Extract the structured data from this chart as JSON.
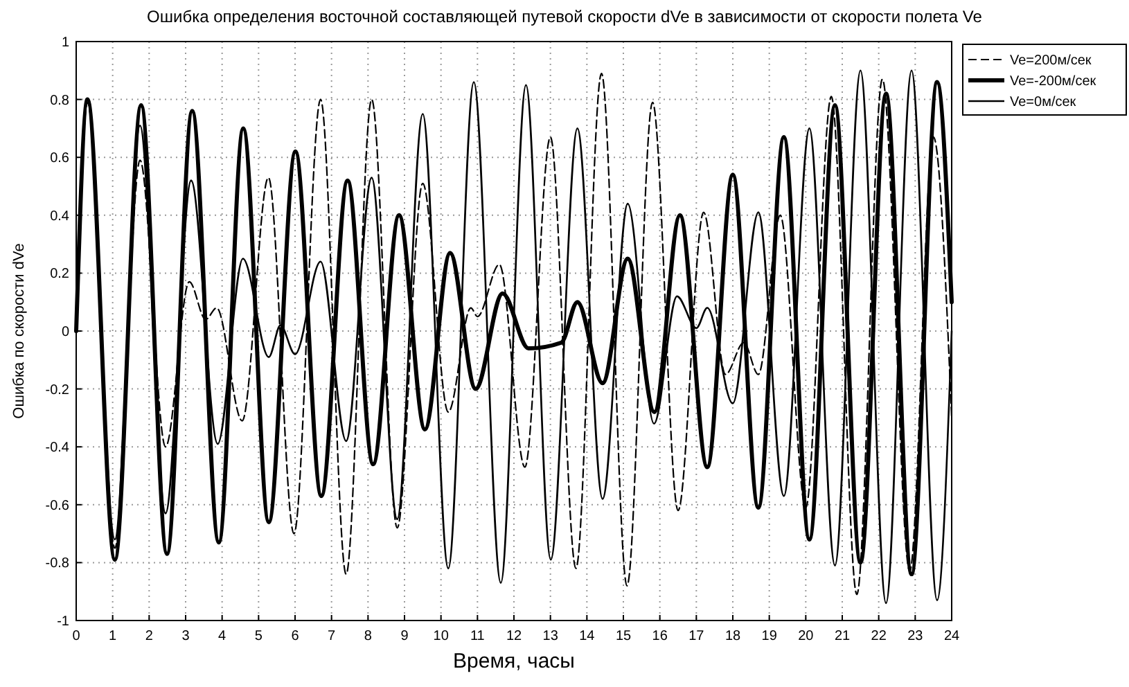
{
  "chart_data": {
    "type": "line",
    "title": "Ошибка определения восточной составляющей путевой скорости dVe в зависимости от скорости полета Ve",
    "xlabel": "Время, часы",
    "ylabel": "Ошибка по скорости dVe",
    "xlim": [
      0,
      24
    ],
    "xticks": [
      0,
      1,
      2,
      3,
      4,
      5,
      6,
      7,
      8,
      9,
      10,
      11,
      12,
      13,
      14,
      15,
      16,
      17,
      18,
      19,
      20,
      21,
      22,
      23,
      24
    ],
    "ylim": [
      -1,
      1
    ],
    "yticks": [
      -1,
      -0.8,
      -0.6,
      -0.4,
      -0.2,
      0,
      0.2,
      0.4,
      0.6,
      0.8,
      1
    ],
    "grid": true,
    "legend": "right",
    "marker": "none",
    "series": [
      {
        "name": "Ve=200м/сек",
        "color": "#000000",
        "line_style": "dashed",
        "x": [
          0,
          0.31,
          1.06,
          1.75,
          2.45,
          3.1,
          3.55,
          3.85,
          4.55,
          5.27,
          5.97,
          6.7,
          7.4,
          8.1,
          8.8,
          9.5,
          10.2,
          10.82,
          11.0,
          11.6,
          12.3,
          13.0,
          13.7,
          14.4,
          15.1,
          15.8,
          16.5,
          17.2,
          17.8,
          18.3,
          18.7,
          19.3,
          20.0,
          20.7,
          21.4,
          22.1,
          22.85,
          23.5,
          24
        ],
        "values": [
          0,
          0.79,
          -0.75,
          0.59,
          -0.4,
          0.17,
          0.04,
          0.08,
          -0.31,
          0.53,
          -0.7,
          0.8,
          -0.84,
          0.8,
          -0.68,
          0.51,
          -0.28,
          0.08,
          0.05,
          0.23,
          -0.47,
          0.67,
          -0.82,
          0.89,
          -0.88,
          0.79,
          -0.62,
          0.41,
          -0.15,
          -0.04,
          -0.15,
          0.4,
          -0.61,
          0.81,
          -0.91,
          0.87,
          -0.83,
          0.67,
          -0.3
        ]
      },
      {
        "name": "Ve=-200м/сек",
        "color": "#000000",
        "line_style": "solid",
        "x": [
          0,
          0.31,
          1.06,
          1.78,
          2.49,
          3.18,
          3.91,
          4.58,
          5.28,
          6.01,
          6.72,
          7.44,
          8.14,
          8.85,
          9.56,
          10.25,
          10.95,
          11.69,
          12.4,
          13.3,
          13.74,
          14.43,
          15.12,
          15.85,
          16.55,
          17.3,
          18.0,
          18.7,
          19.4,
          20.1,
          20.8,
          21.5,
          22.2,
          22.9,
          23.6,
          24
        ],
        "values": [
          0,
          0.8,
          -0.79,
          0.78,
          -0.77,
          0.76,
          -0.73,
          0.7,
          -0.66,
          0.62,
          -0.57,
          0.52,
          -0.46,
          0.4,
          -0.34,
          0.27,
          -0.2,
          0.13,
          -0.06,
          -0.04,
          0.1,
          -0.18,
          0.25,
          -0.28,
          0.4,
          -0.47,
          0.54,
          -0.61,
          0.67,
          -0.72,
          0.78,
          -0.8,
          0.82,
          -0.84,
          0.86,
          0.1
        ]
      },
      {
        "name": "Ve=0м/сек",
        "color": "#000000",
        "line_style": "solid",
        "x": [
          0,
          0.31,
          1.06,
          1.75,
          2.45,
          3.15,
          3.88,
          4.57,
          5.28,
          5.6,
          6.0,
          6.7,
          7.4,
          8.1,
          8.8,
          9.5,
          10.2,
          10.9,
          11.64,
          12.33,
          13.01,
          13.74,
          14.43,
          15.12,
          15.84,
          16.47,
          17.0,
          17.3,
          18.0,
          18.7,
          19.4,
          20.1,
          20.8,
          21.5,
          22.2,
          22.9,
          23.6,
          24
        ],
        "values": [
          0,
          0.79,
          -0.72,
          0.71,
          -0.63,
          0.52,
          -0.39,
          0.25,
          -0.09,
          0.02,
          -0.08,
          0.24,
          -0.38,
          0.53,
          -0.65,
          0.75,
          -0.82,
          0.86,
          -0.87,
          0.85,
          -0.79,
          0.7,
          -0.58,
          0.44,
          -0.32,
          0.12,
          0.01,
          0.08,
          -0.25,
          0.41,
          -0.57,
          0.7,
          -0.81,
          0.9,
          -0.94,
          0.9,
          -0.93,
          0
        ]
      }
    ]
  }
}
